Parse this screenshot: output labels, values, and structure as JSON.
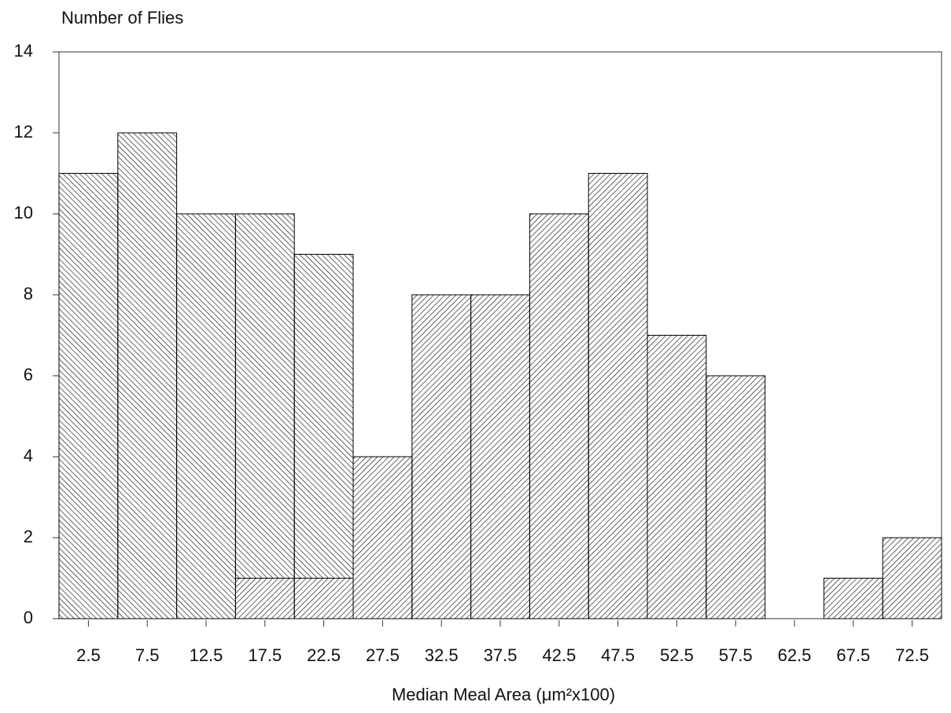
{
  "chart_data": {
    "type": "bar",
    "stacked": true,
    "y_axis_title": "Number of Flies",
    "x_axis_title": "Median Meal Area (μm²x100)",
    "categories": [
      "2.5",
      "7.5",
      "12.5",
      "17.5",
      "22.5",
      "27.5",
      "32.5",
      "37.5",
      "42.5",
      "47.5",
      "52.5",
      "57.5",
      "62.5",
      "67.5",
      "72.5"
    ],
    "series": [
      {
        "color": "#000000",
        "hatch": "slash",
        "values": [
          0,
          0,
          0,
          1,
          1,
          4,
          8,
          8,
          10,
          11,
          7,
          6,
          0,
          1,
          2
        ]
      },
      {
        "color": "#000000",
        "hatch": "backslash",
        "values": [
          11,
          12,
          10,
          9,
          8,
          0,
          0,
          0,
          0,
          0,
          0,
          0,
          0,
          0,
          0
        ]
      }
    ],
    "ylim": [
      0,
      14
    ],
    "yticks": [
      0,
      2,
      4,
      6,
      8,
      10,
      12,
      14
    ],
    "grid": false
  }
}
